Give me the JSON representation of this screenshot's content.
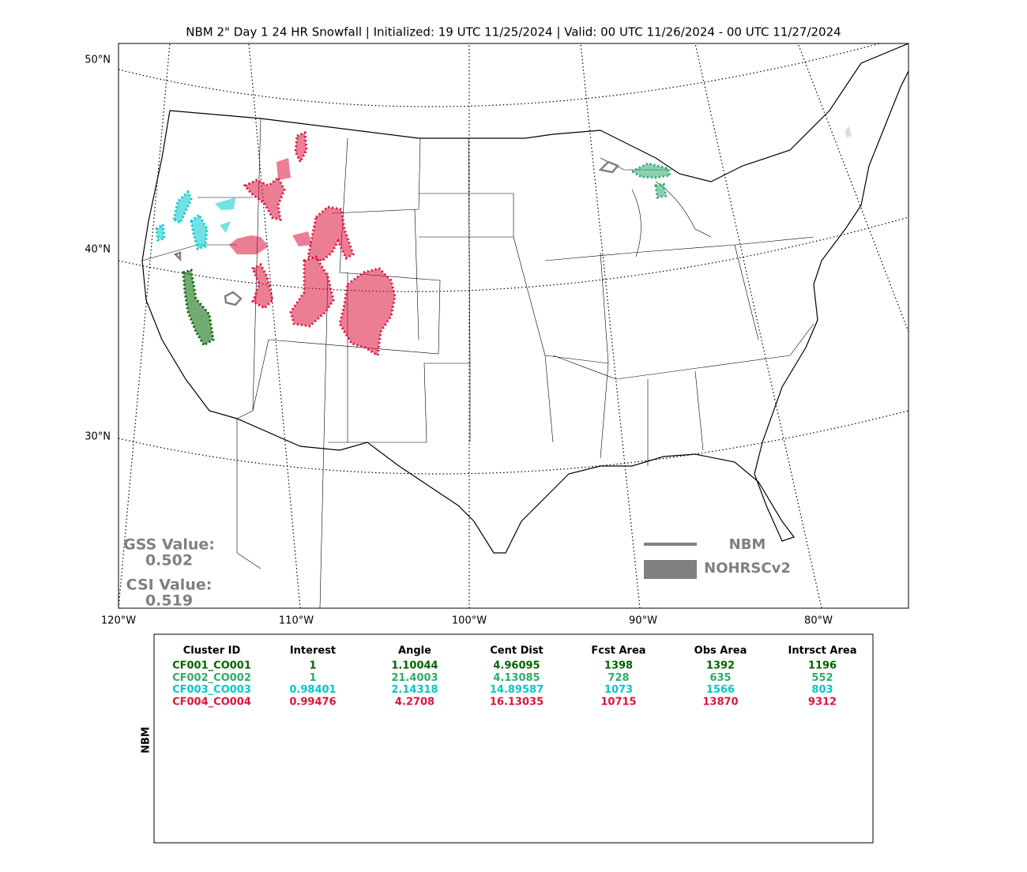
{
  "title": "NBM 2\" Day 1 24 HR Snowfall | Initialized: 19 UTC 11/25/2024 | Valid: 00 UTC 11/26/2024 - 00 UTC 11/27/2024",
  "map": {
    "lat_labels": [
      "50°N",
      "40°N",
      "30°N"
    ],
    "lon_labels": [
      "120°W",
      "110°W",
      "100°W",
      "90°W",
      "80°W"
    ]
  },
  "scores": {
    "gss_label": "GSS Value:",
    "gss": "0.502",
    "csi_label": "CSI Value:",
    "csi": "0.519"
  },
  "legend": {
    "line": "NBM",
    "fill": "NOHRSCv2",
    "color": "#808080"
  },
  "table": {
    "side_label": "NBM",
    "columns": [
      "Cluster ID",
      "Interest",
      "Angle",
      "Cent Dist",
      "Fcst Area",
      "Obs Area",
      "Intrsct Area"
    ],
    "row_colors": [
      "#006400",
      "#2eaa6e",
      "#00c8cc",
      "#dc143c"
    ],
    "rows": [
      [
        "CF001_CO001",
        "1",
        "1.10044",
        "4.96095",
        "1398",
        "1392",
        "1196"
      ],
      [
        "CF002_CO002",
        "1",
        "21.4003",
        "4.13085",
        "728",
        "635",
        "552"
      ],
      [
        "CF003_CO003",
        "0.98401",
        "2.14318",
        "14.89587",
        "1073",
        "1566",
        "803"
      ],
      [
        "CF004_CO004",
        "0.99476",
        "4.2708",
        "16.13035",
        "10715",
        "13870",
        "9312"
      ]
    ]
  }
}
